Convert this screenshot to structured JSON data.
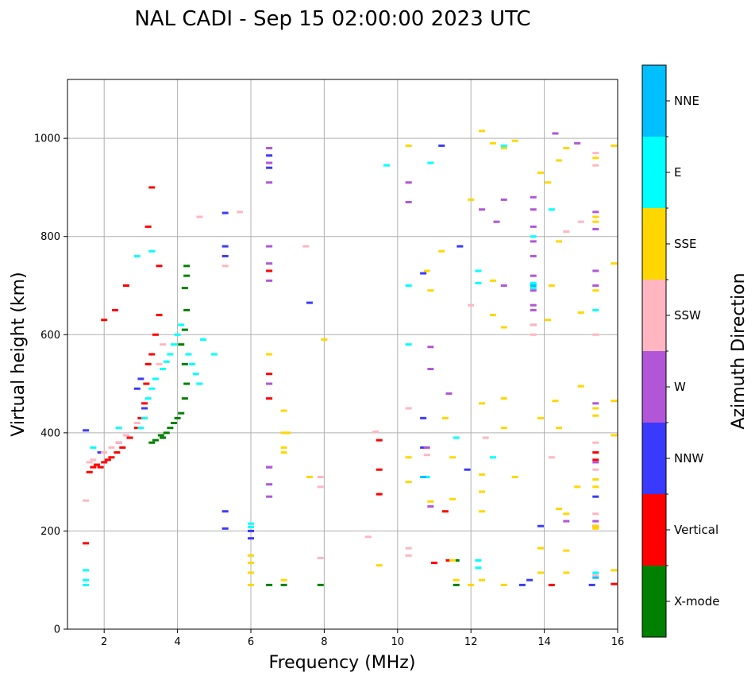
{
  "chart_data": {
    "type": "scatter",
    "title": "NAL CADI - Sep 15 02:00:00 2023 UTC",
    "xlabel": "Frequency (MHz)",
    "ylabel": "Virtual height (km)",
    "xlim": [
      1,
      16
    ],
    "ylim": [
      0,
      1120
    ],
    "x_ticks": [
      2,
      4,
      6,
      8,
      10,
      12,
      14,
      16
    ],
    "y_ticks": [
      0,
      200,
      400,
      600,
      800,
      1000
    ],
    "grid": true,
    "colorbar": {
      "title": "Azimuth Direction",
      "categories": [
        "X-mode",
        "Vertical",
        "NNW",
        "W",
        "SSW",
        "SSE",
        "E",
        "NNE"
      ],
      "colors": [
        "#008000",
        "#ff0000",
        "#3a3aff",
        "#b056d6",
        "#ffb6c1",
        "#ffd700",
        "#00ffff",
        "#00bfff"
      ]
    },
    "series": [
      {
        "name": "X-mode",
        "color": "#008000",
        "points": [
          [
            3.55,
            395
          ],
          [
            3.7,
            400
          ],
          [
            3.8,
            410
          ],
          [
            3.9,
            420
          ],
          [
            4.0,
            430
          ],
          [
            4.1,
            440
          ],
          [
            4.2,
            470
          ],
          [
            4.25,
            500
          ],
          [
            4.2,
            540
          ],
          [
            4.1,
            580
          ],
          [
            4.2,
            610
          ],
          [
            4.25,
            650
          ],
          [
            4.2,
            695
          ],
          [
            4.25,
            720
          ],
          [
            4.25,
            740
          ],
          [
            6.5,
            90
          ],
          [
            6.9,
            90
          ],
          [
            7.9,
            90
          ],
          [
            11.6,
            90
          ],
          [
            11.6,
            140
          ],
          [
            3.4,
            385
          ],
          [
            3.6,
            390
          ],
          [
            3.3,
            380
          ]
        ]
      },
      {
        "name": "Vertical",
        "color": "#ff0000",
        "points": [
          [
            1.5,
            175
          ],
          [
            1.6,
            320
          ],
          [
            1.7,
            330
          ],
          [
            1.8,
            335
          ],
          [
            1.9,
            330
          ],
          [
            2.0,
            340
          ],
          [
            2.1,
            345
          ],
          [
            2.2,
            350
          ],
          [
            2.35,
            360
          ],
          [
            2.5,
            370
          ],
          [
            2.7,
            390
          ],
          [
            2.9,
            410
          ],
          [
            3.0,
            430
          ],
          [
            3.1,
            460
          ],
          [
            3.15,
            500
          ],
          [
            3.2,
            540
          ],
          [
            3.3,
            560
          ],
          [
            3.4,
            600
          ],
          [
            3.5,
            640
          ],
          [
            3.3,
            900
          ],
          [
            3.2,
            820
          ],
          [
            3.5,
            740
          ],
          [
            2.6,
            700
          ],
          [
            2.3,
            650
          ],
          [
            2.0,
            630
          ],
          [
            6.5,
            730
          ],
          [
            6.5,
            470
          ],
          [
            6.5,
            520
          ],
          [
            9.5,
            385
          ],
          [
            9.5,
            325
          ],
          [
            9.5,
            275
          ],
          [
            11.0,
            135
          ],
          [
            11.3,
            240
          ],
          [
            11.4,
            140
          ],
          [
            14.2,
            90
          ],
          [
            15.4,
            345
          ],
          [
            15.4,
            360
          ],
          [
            15.4,
            210
          ],
          [
            15.9,
            92
          ]
        ]
      },
      {
        "name": "NNW",
        "color": "#3a3aff",
        "points": [
          [
            1.5,
            405
          ],
          [
            1.9,
            360
          ],
          [
            2.4,
            380
          ],
          [
            2.9,
            490
          ],
          [
            3.0,
            510
          ],
          [
            3.1,
            450
          ],
          [
            5.3,
            848
          ],
          [
            5.3,
            780
          ],
          [
            5.3,
            760
          ],
          [
            5.3,
            240
          ],
          [
            5.3,
            205
          ],
          [
            6.0,
            200
          ],
          [
            6.0,
            185
          ],
          [
            6.5,
            940
          ],
          [
            6.5,
            965
          ],
          [
            6.5,
            330
          ],
          [
            7.6,
            665
          ],
          [
            10.7,
            725
          ],
          [
            10.7,
            370
          ],
          [
            10.7,
            430
          ],
          [
            11.2,
            985
          ],
          [
            11.7,
            780
          ],
          [
            11.9,
            325
          ],
          [
            13.4,
            90
          ],
          [
            13.6,
            100
          ],
          [
            13.9,
            210
          ],
          [
            15.3,
            90
          ],
          [
            15.4,
            270
          ]
        ]
      },
      {
        "name": "W",
        "color": "#b056d6",
        "points": [
          [
            6.5,
            980
          ],
          [
            6.5,
            950
          ],
          [
            6.5,
            910
          ],
          [
            6.5,
            780
          ],
          [
            6.5,
            745
          ],
          [
            6.5,
            710
          ],
          [
            6.5,
            500
          ],
          [
            6.5,
            330
          ],
          [
            6.5,
            295
          ],
          [
            6.5,
            270
          ],
          [
            10.3,
            910
          ],
          [
            10.3,
            870
          ],
          [
            10.8,
            370
          ],
          [
            10.9,
            575
          ],
          [
            10.9,
            530
          ],
          [
            10.9,
            250
          ],
          [
            11.4,
            480
          ],
          [
            12.3,
            855
          ],
          [
            12.7,
            830
          ],
          [
            12.9,
            875
          ],
          [
            12.9,
            700
          ],
          [
            13.7,
            790
          ],
          [
            13.7,
            760
          ],
          [
            13.7,
            720
          ],
          [
            13.7,
            690
          ],
          [
            13.7,
            660
          ],
          [
            13.7,
            880
          ],
          [
            13.7,
            855
          ],
          [
            13.7,
            820
          ],
          [
            13.7,
            650
          ],
          [
            13.7,
            620
          ],
          [
            14.6,
            220
          ],
          [
            14.9,
            990
          ],
          [
            15.4,
            850
          ],
          [
            15.4,
            815
          ],
          [
            15.4,
            730
          ],
          [
            15.4,
            700
          ],
          [
            15.4,
            460
          ],
          [
            15.4,
            340
          ],
          [
            15.4,
            220
          ],
          [
            14.3,
            1010
          ]
        ]
      },
      {
        "name": "SSW",
        "color": "#ffb6c1",
        "points": [
          [
            1.5,
            262
          ],
          [
            1.6,
            340
          ],
          [
            1.7,
            345
          ],
          [
            2.0,
            360
          ],
          [
            2.2,
            370
          ],
          [
            2.4,
            380
          ],
          [
            2.6,
            395
          ],
          [
            2.9,
            420
          ],
          [
            3.5,
            540
          ],
          [
            3.6,
            580
          ],
          [
            4.6,
            840
          ],
          [
            5.3,
            740
          ],
          [
            5.7,
            850
          ],
          [
            7.5,
            780
          ],
          [
            7.9,
            310
          ],
          [
            7.9,
            290
          ],
          [
            7.9,
            145
          ],
          [
            9.2,
            188
          ],
          [
            9.4,
            402
          ],
          [
            10.3,
            450
          ],
          [
            10.3,
            165
          ],
          [
            10.3,
            150
          ],
          [
            10.8,
            355
          ],
          [
            12.0,
            660
          ],
          [
            12.4,
            390
          ],
          [
            13.7,
            600
          ],
          [
            13.7,
            620
          ],
          [
            14.2,
            350
          ],
          [
            14.6,
            810
          ],
          [
            15.4,
            945
          ],
          [
            15.4,
            970
          ],
          [
            15.4,
            600
          ],
          [
            15.4,
            380
          ],
          [
            15.4,
            325
          ],
          [
            15.4,
            235
          ],
          [
            15.4,
            110
          ],
          [
            15.0,
            830
          ]
        ]
      },
      {
        "name": "SSE",
        "color": "#ffd700",
        "points": [
          [
            6.0,
            150
          ],
          [
            6.0,
            135
          ],
          [
            6.0,
            115
          ],
          [
            6.0,
            90
          ],
          [
            6.5,
            560
          ],
          [
            6.9,
            445
          ],
          [
            6.9,
            400
          ],
          [
            6.9,
            370
          ],
          [
            6.9,
            360
          ],
          [
            6.9,
            100
          ],
          [
            7.0,
            400
          ],
          [
            7.6,
            310
          ],
          [
            8.0,
            590
          ],
          [
            9.5,
            130
          ],
          [
            10.3,
            985
          ],
          [
            10.3,
            300
          ],
          [
            10.3,
            350
          ],
          [
            10.8,
            730
          ],
          [
            10.9,
            690
          ],
          [
            10.9,
            260
          ],
          [
            11.2,
            770
          ],
          [
            11.3,
            430
          ],
          [
            11.5,
            350
          ],
          [
            11.5,
            265
          ],
          [
            11.5,
            140
          ],
          [
            11.6,
            100
          ],
          [
            12.0,
            875
          ],
          [
            12.0,
            90
          ],
          [
            12.3,
            1015
          ],
          [
            12.3,
            460
          ],
          [
            12.3,
            315
          ],
          [
            12.3,
            280
          ],
          [
            12.3,
            240
          ],
          [
            12.3,
            100
          ],
          [
            12.6,
            990
          ],
          [
            12.6,
            710
          ],
          [
            12.6,
            640
          ],
          [
            12.9,
            980
          ],
          [
            12.9,
            615
          ],
          [
            12.9,
            470
          ],
          [
            12.9,
            410
          ],
          [
            12.9,
            90
          ],
          [
            13.2,
            995
          ],
          [
            13.2,
            310
          ],
          [
            13.9,
            930
          ],
          [
            13.9,
            430
          ],
          [
            13.9,
            165
          ],
          [
            13.9,
            115
          ],
          [
            14.1,
            910
          ],
          [
            14.1,
            630
          ],
          [
            14.2,
            700
          ],
          [
            14.3,
            465
          ],
          [
            14.4,
            955
          ],
          [
            14.4,
            790
          ],
          [
            14.4,
            410
          ],
          [
            14.4,
            245
          ],
          [
            14.6,
            980
          ],
          [
            14.6,
            235
          ],
          [
            14.6,
            160
          ],
          [
            14.6,
            115
          ],
          [
            14.9,
            290
          ],
          [
            15.0,
            645
          ],
          [
            15.0,
            495
          ],
          [
            15.4,
            960
          ],
          [
            15.4,
            840
          ],
          [
            15.4,
            830
          ],
          [
            15.4,
            690
          ],
          [
            15.4,
            450
          ],
          [
            15.4,
            435
          ],
          [
            15.4,
            305
          ],
          [
            15.4,
            290
          ],
          [
            15.4,
            210
          ],
          [
            15.4,
            205
          ],
          [
            15.9,
            985
          ],
          [
            15.9,
            745
          ],
          [
            15.9,
            465
          ],
          [
            15.9,
            395
          ],
          [
            15.9,
            120
          ]
        ]
      },
      {
        "name": "E",
        "color": "#00ffff",
        "points": [
          [
            1.5,
            120
          ],
          [
            1.5,
            100
          ],
          [
            1.5,
            90
          ],
          [
            1.7,
            370
          ],
          [
            2.4,
            410
          ],
          [
            3.0,
            410
          ],
          [
            3.1,
            430
          ],
          [
            3.2,
            470
          ],
          [
            3.3,
            490
          ],
          [
            3.4,
            510
          ],
          [
            3.6,
            530
          ],
          [
            3.7,
            545
          ],
          [
            3.8,
            560
          ],
          [
            3.9,
            580
          ],
          [
            4.0,
            600
          ],
          [
            4.1,
            620
          ],
          [
            4.3,
            560
          ],
          [
            4.4,
            540
          ],
          [
            4.5,
            520
          ],
          [
            4.6,
            500
          ],
          [
            4.7,
            590
          ],
          [
            5.0,
            560
          ],
          [
            2.9,
            760
          ],
          [
            3.3,
            770
          ],
          [
            6.0,
            215
          ],
          [
            6.0,
            208
          ],
          [
            9.7,
            945
          ],
          [
            10.3,
            700
          ],
          [
            10.3,
            580
          ],
          [
            10.8,
            310
          ],
          [
            10.9,
            950
          ],
          [
            11.6,
            390
          ],
          [
            12.2,
            730
          ],
          [
            12.2,
            705
          ],
          [
            12.2,
            140
          ],
          [
            12.2,
            125
          ],
          [
            12.6,
            350
          ],
          [
            12.9,
            985
          ],
          [
            13.7,
            800
          ],
          [
            13.7,
            705
          ],
          [
            13.7,
            695
          ],
          [
            14.2,
            855
          ],
          [
            15.4,
            650
          ],
          [
            15.4,
            115
          ]
        ]
      },
      {
        "name": "NNE",
        "color": "#00bfff",
        "points": [
          [
            10.7,
            310
          ],
          [
            13.7,
            700
          ],
          [
            15.4,
            105
          ]
        ]
      }
    ]
  }
}
